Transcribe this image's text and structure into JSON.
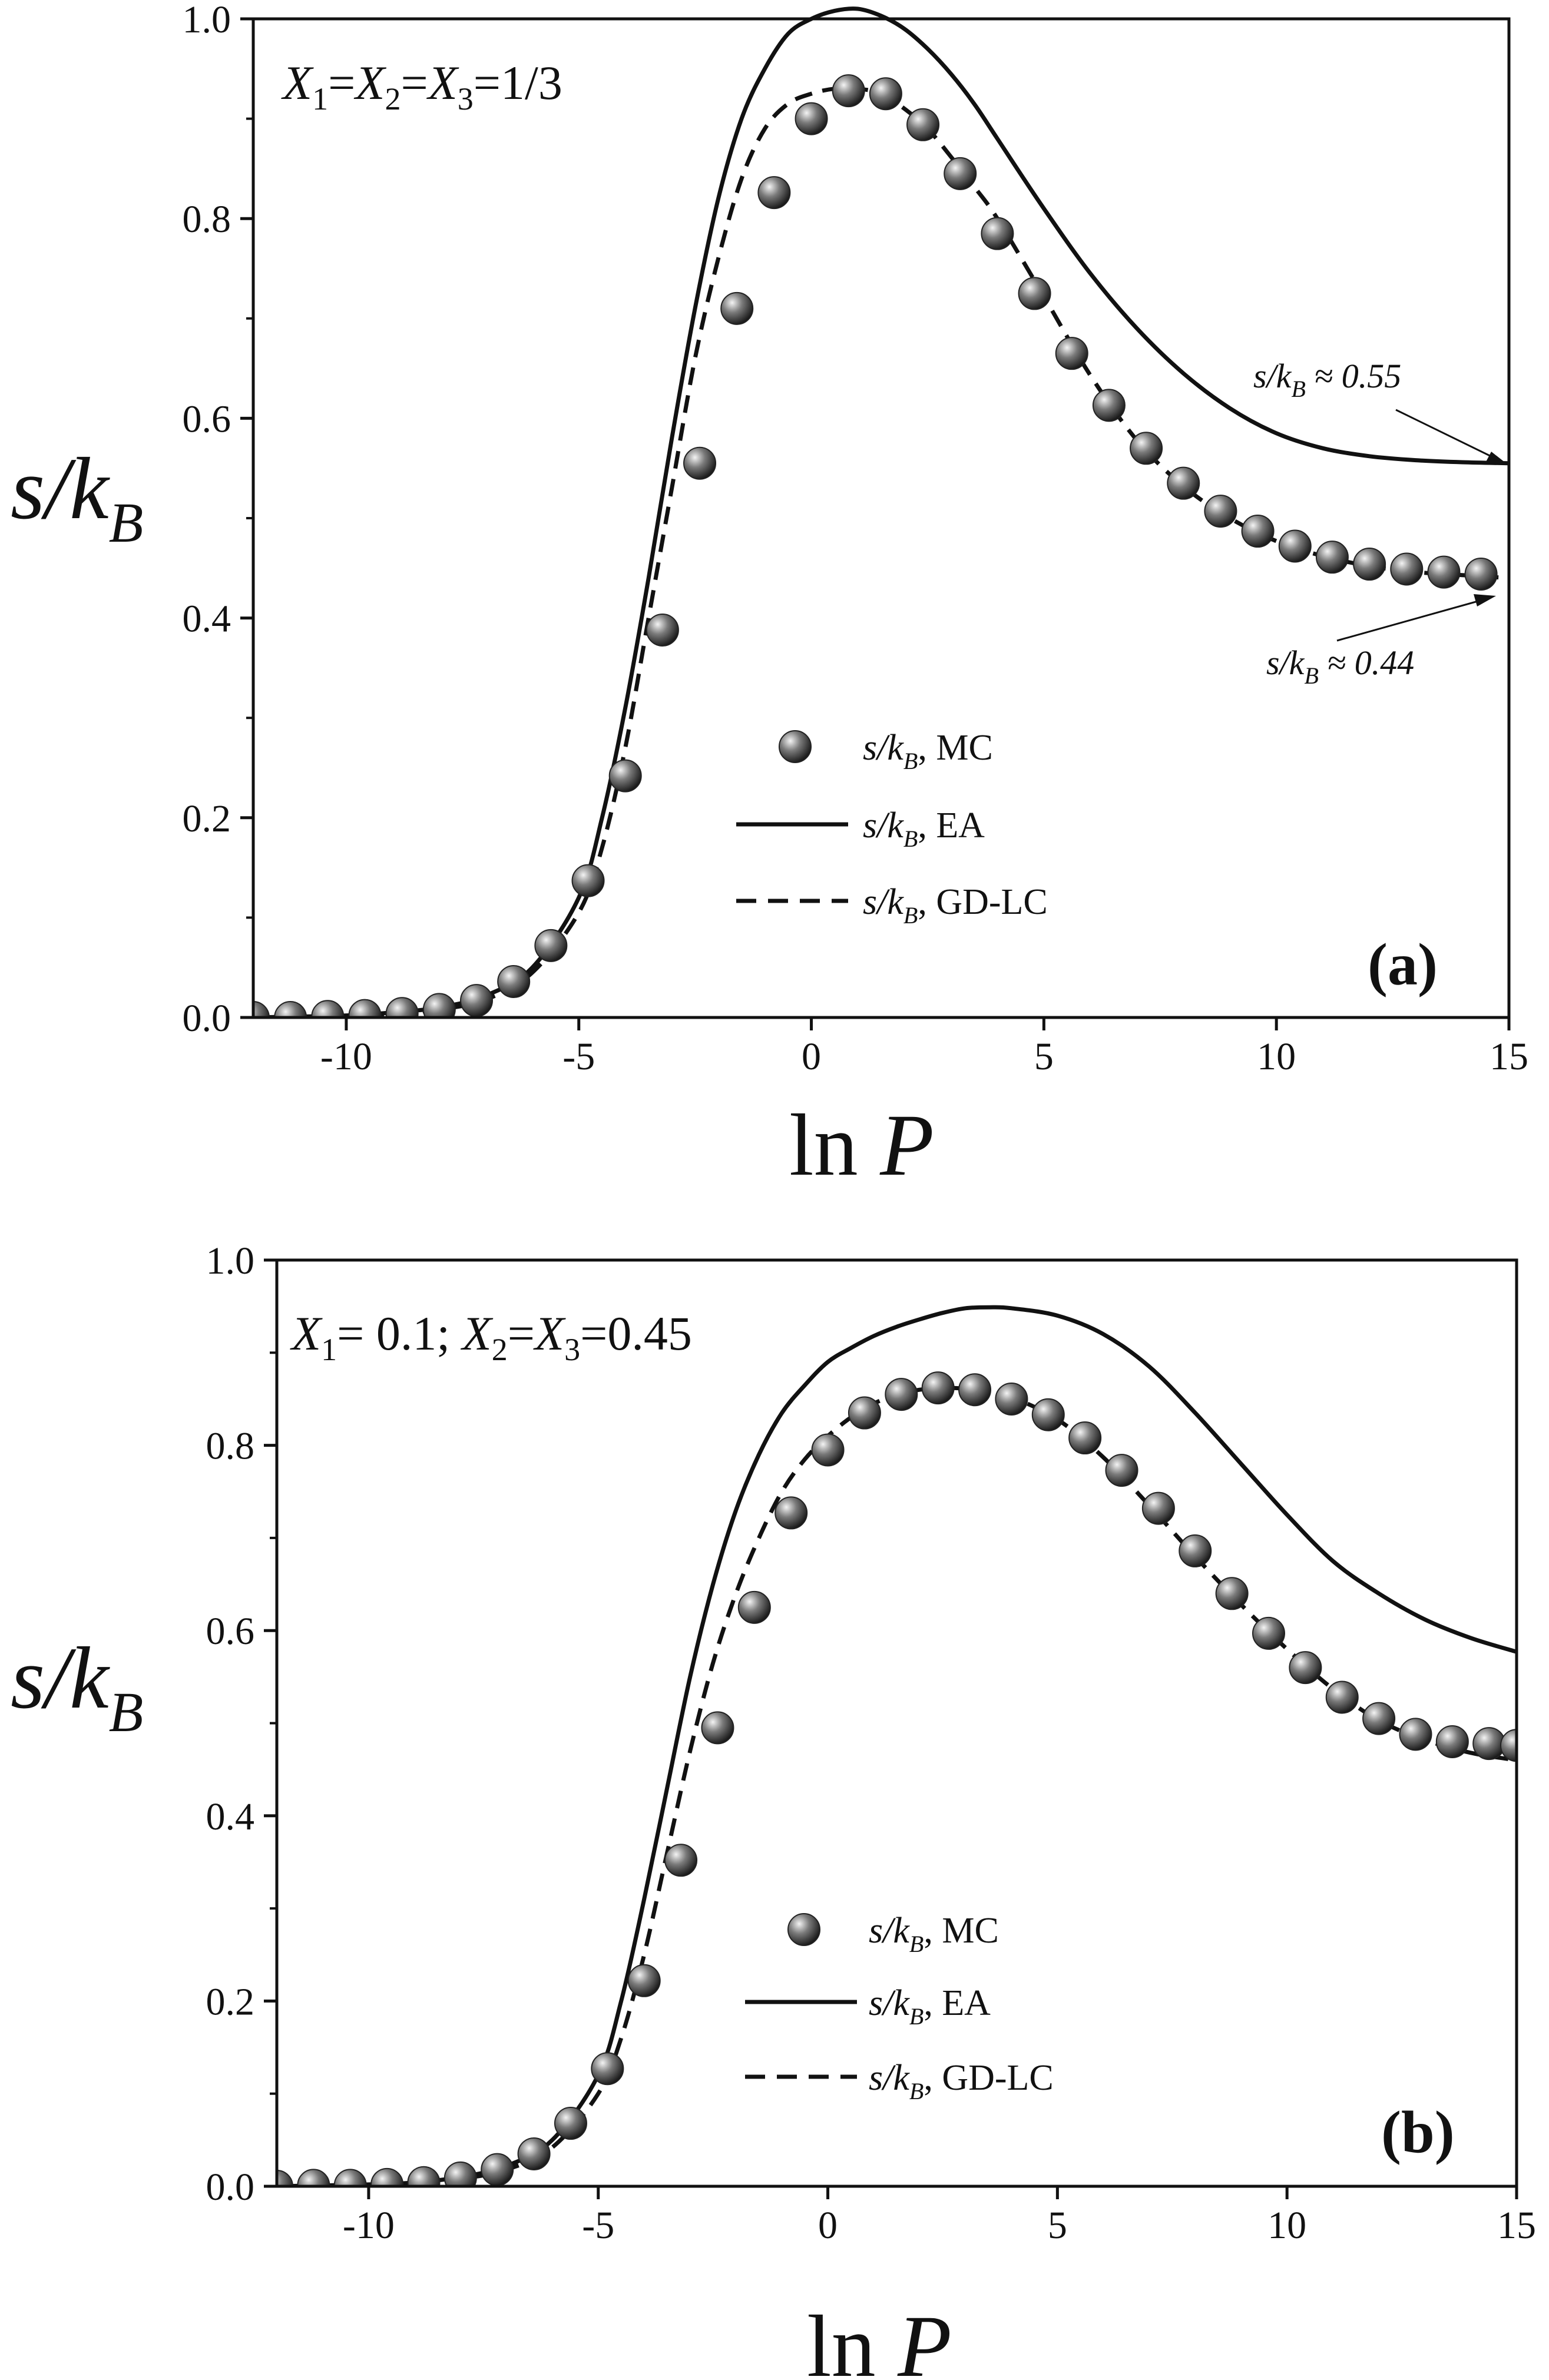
{
  "colors": {
    "line": "#111111",
    "marker_light": "#f4f4f4",
    "marker_mid": "#7a7a7a",
    "marker_dark": "#1a1a1a",
    "background": "#ffffff"
  },
  "chart_data": [
    {
      "type": "line",
      "panel_label": "(a)",
      "composition": {
        "x1_val": "1/3",
        "x2_val": "",
        "x3_val": ""
      },
      "xlabel": "ln P",
      "ylabel": "s/kB",
      "xlim": [
        -12,
        15
      ],
      "ylim": [
        0,
        1.0
      ],
      "xticks": [
        "-10",
        "-5",
        "0",
        "5",
        "10",
        "15"
      ],
      "xtick_values": [
        -10,
        -5,
        0,
        5,
        10,
        15
      ],
      "yticks": [
        "0.0",
        "0.2",
        "0.4",
        "0.6",
        "0.8",
        "1.0"
      ],
      "ytick_values": [
        0.0,
        0.2,
        0.4,
        0.6,
        0.8,
        1.0
      ],
      "legend_position": "center-right",
      "series": [
        {
          "name": "MC",
          "legend_label": ", MC",
          "style": "markers",
          "x": [
            -12,
            -11.2,
            -10.4,
            -9.6,
            -8.8,
            -8.0,
            -7.2,
            -6.4,
            -5.6,
            -4.8,
            -4.0,
            -3.2,
            -2.4,
            -1.6,
            -0.8,
            0.0,
            0.8,
            1.6,
            2.4,
            3.2,
            4.0,
            4.8,
            5.6,
            6.4,
            7.2,
            8.0,
            8.8,
            9.6,
            10.4,
            11.2,
            12.0,
            12.8,
            13.6,
            14.4
          ],
          "y": [
            0.0,
            0.0,
            0.001,
            0.002,
            0.004,
            0.008,
            0.017,
            0.036,
            0.072,
            0.137,
            0.242,
            0.388,
            0.555,
            0.71,
            0.826,
            0.9,
            0.928,
            0.925,
            0.894,
            0.845,
            0.785,
            0.725,
            0.665,
            0.613,
            0.57,
            0.535,
            0.507,
            0.487,
            0.472,
            0.461,
            0.454,
            0.449,
            0.446,
            0.444
          ]
        },
        {
          "name": "EA",
          "legend_label": ", EA",
          "style": "solid",
          "x": [
            -12,
            -10,
            -9,
            -8,
            -7,
            -6,
            -5,
            -4.5,
            -4,
            -3.5,
            -3,
            -2.5,
            -2,
            -1.5,
            -1,
            -0.5,
            0,
            0.5,
            1.0,
            1.5,
            2,
            2.5,
            3,
            3.5,
            4,
            5,
            6,
            7,
            8,
            9,
            10,
            11,
            12,
            13,
            14,
            15
          ],
          "y": [
            0.0,
            0.002,
            0.005,
            0.01,
            0.022,
            0.05,
            0.12,
            0.2,
            0.31,
            0.44,
            0.58,
            0.71,
            0.82,
            0.9,
            0.95,
            0.985,
            1.0,
            1.008,
            1.01,
            1.003,
            0.99,
            0.97,
            0.945,
            0.915,
            0.88,
            0.81,
            0.745,
            0.69,
            0.645,
            0.61,
            0.585,
            0.57,
            0.562,
            0.558,
            0.556,
            0.555
          ]
        },
        {
          "name": "GD-LC",
          "legend_label": ", GD-LC",
          "style": "dashed",
          "x": [
            -12,
            -10,
            -9,
            -8,
            -7,
            -6,
            -5,
            -4.5,
            -4,
            -3.5,
            -3,
            -2.5,
            -2,
            -1.5,
            -1,
            -0.5,
            0,
            0.5,
            1.0,
            1.5,
            2,
            2.5,
            3,
            3.5,
            4,
            5,
            6,
            7,
            8,
            9,
            10,
            11,
            12,
            13,
            14,
            15
          ],
          "y": [
            0.0,
            0.001,
            0.004,
            0.008,
            0.018,
            0.045,
            0.105,
            0.17,
            0.27,
            0.4,
            0.53,
            0.66,
            0.76,
            0.84,
            0.89,
            0.915,
            0.925,
            0.93,
            0.93,
            0.925,
            0.91,
            0.89,
            0.862,
            0.832,
            0.8,
            0.722,
            0.643,
            0.578,
            0.532,
            0.5,
            0.477,
            0.462,
            0.452,
            0.446,
            0.443,
            0.44
          ]
        }
      ],
      "annotations": [
        {
          "text_prefix": "s/k",
          "sub": "B",
          "text_value": " ≈ 0.55",
          "points_to": [
            15,
            0.555
          ]
        },
        {
          "text_prefix": "s/k",
          "sub": "B",
          "text_value": " ≈ 0.44",
          "points_to": [
            15,
            0.44
          ]
        }
      ]
    },
    {
      "type": "line",
      "panel_label": "(b)",
      "composition": {
        "x1_val": " 0.1;",
        "x2_val": "",
        "x3_val": "0.45"
      },
      "xlabel": "ln P",
      "ylabel": "s/kB",
      "xlim": [
        -12,
        15
      ],
      "ylim": [
        0,
        1.0
      ],
      "xticks": [
        "-10",
        "-5",
        "0",
        "5",
        "10",
        "15"
      ],
      "xtick_values": [
        -10,
        -5,
        0,
        5,
        10,
        15
      ],
      "yticks": [
        "0.0",
        "0.2",
        "0.4",
        "0.6",
        "0.8",
        "1.0"
      ],
      "ytick_values": [
        0.0,
        0.2,
        0.4,
        0.6,
        0.8,
        1.0
      ],
      "legend_position": "center-right",
      "series": [
        {
          "name": "MC",
          "legend_label": ", MC",
          "style": "markers",
          "x": [
            -12,
            -11.2,
            -10.4,
            -9.6,
            -8.8,
            -8.0,
            -7.2,
            -6.4,
            -5.6,
            -4.8,
            -4.0,
            -3.2,
            -2.4,
            -1.6,
            -0.8,
            0.0,
            0.8,
            1.6,
            2.4,
            3.2,
            4.0,
            4.8,
            5.6,
            6.4,
            7.2,
            8.0,
            8.8,
            9.6,
            10.4,
            11.2,
            12.0,
            12.8,
            13.6,
            14.4,
            15.0
          ],
          "y": [
            0.0,
            0.001,
            0.001,
            0.002,
            0.004,
            0.009,
            0.018,
            0.035,
            0.068,
            0.127,
            0.222,
            0.352,
            0.495,
            0.625,
            0.727,
            0.795,
            0.835,
            0.855,
            0.862,
            0.86,
            0.85,
            0.833,
            0.808,
            0.773,
            0.732,
            0.686,
            0.64,
            0.597,
            0.56,
            0.528,
            0.505,
            0.488,
            0.48,
            0.478,
            0.476
          ]
        },
        {
          "name": "EA",
          "legend_label": ", EA",
          "style": "solid",
          "x": [
            -12,
            -10,
            -9,
            -8,
            -7,
            -6,
            -5,
            -4.5,
            -4,
            -3.5,
            -3,
            -2.5,
            -2,
            -1.5,
            -1,
            -0.5,
            0,
            0.5,
            1,
            1.5,
            2,
            2.5,
            3,
            3.5,
            4,
            5,
            6,
            7,
            8,
            9,
            10,
            11,
            12,
            13,
            14,
            15
          ],
          "y": [
            0.0,
            0.002,
            0.004,
            0.01,
            0.022,
            0.05,
            0.12,
            0.2,
            0.31,
            0.43,
            0.55,
            0.65,
            0.73,
            0.79,
            0.835,
            0.865,
            0.89,
            0.905,
            0.918,
            0.928,
            0.936,
            0.943,
            0.948,
            0.949,
            0.948,
            0.94,
            0.92,
            0.885,
            0.835,
            0.78,
            0.725,
            0.675,
            0.64,
            0.612,
            0.592,
            0.577
          ]
        },
        {
          "name": "GD-LC",
          "legend_label": ", GD-LC",
          "style": "dashed",
          "x": [
            -12,
            -10,
            -9,
            -8,
            -7,
            -6,
            -5,
            -4.5,
            -4,
            -3.5,
            -3,
            -2.5,
            -2,
            -1.5,
            -1,
            -0.5,
            0,
            0.5,
            1,
            1.5,
            2,
            2.5,
            3,
            3.5,
            4,
            5,
            6,
            7,
            8,
            9,
            10,
            11,
            12,
            13,
            14,
            15
          ],
          "y": [
            0.0,
            0.001,
            0.003,
            0.008,
            0.018,
            0.042,
            0.1,
            0.16,
            0.25,
            0.36,
            0.47,
            0.565,
            0.64,
            0.7,
            0.75,
            0.785,
            0.81,
            0.83,
            0.845,
            0.855,
            0.86,
            0.862,
            0.861,
            0.858,
            0.852,
            0.828,
            0.787,
            0.735,
            0.68,
            0.628,
            0.58,
            0.537,
            0.503,
            0.482,
            0.468,
            0.46
          ]
        }
      ],
      "annotations": []
    }
  ]
}
